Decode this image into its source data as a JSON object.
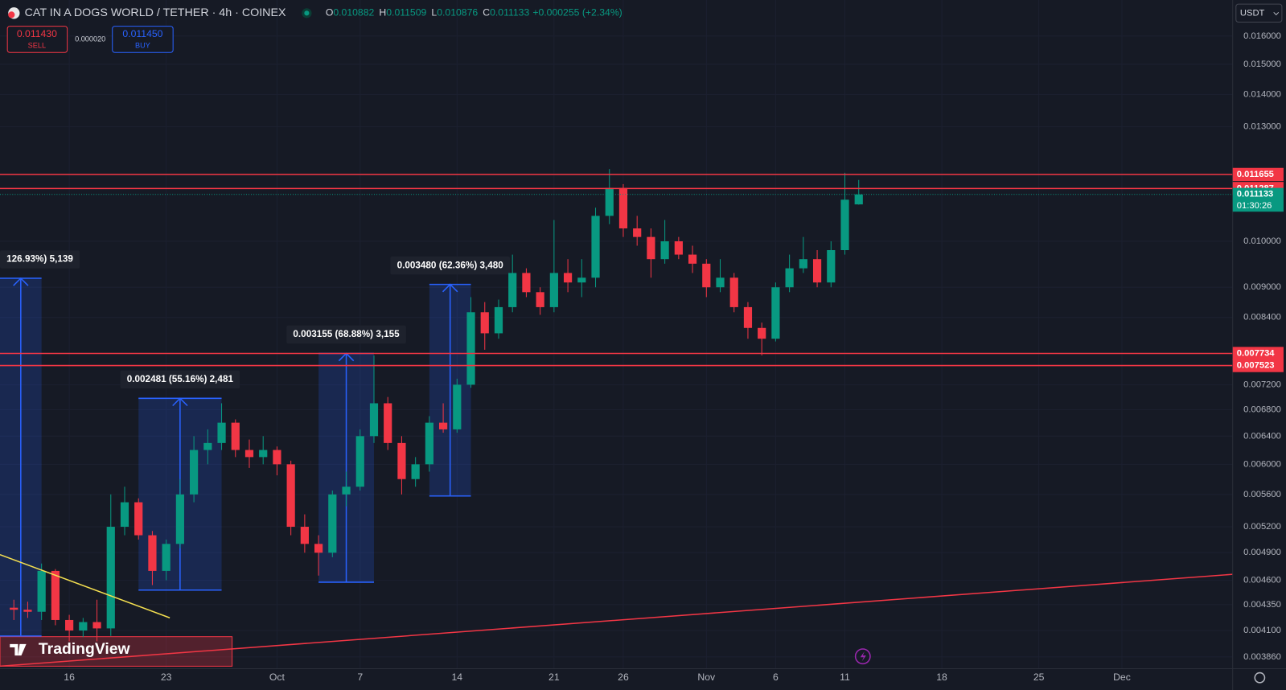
{
  "header": {
    "symbol": "CAT IN A DOGS WORLD / TETHER · 4h · COINEX",
    "ohlc": [
      {
        "label": "O",
        "value": "0.010882"
      },
      {
        "label": "H",
        "value": "0.011509"
      },
      {
        "label": "L",
        "value": "0.010876"
      },
      {
        "label": "C",
        "value": "0.011133"
      }
    ],
    "change": "+0.000255 (+2.34%)"
  },
  "trade": {
    "sell_price": "0.011430",
    "sell_label": "SELL",
    "spread": "0.000020",
    "buy_price": "0.011450",
    "buy_label": "BUY"
  },
  "currency": "USDT",
  "branding": "TradingView",
  "chart_data": {
    "type": "candlestick",
    "log_scale": true,
    "grid": true,
    "up_color": "#089981",
    "down_color": "#f23645",
    "x": [
      "09-12",
      "09-13",
      "09-14",
      "09-15",
      "09-16",
      "09-17",
      "09-18",
      "09-19",
      "09-20",
      "09-21",
      "09-22",
      "09-23",
      "09-24",
      "09-25",
      "09-26",
      "09-27",
      "09-28",
      "09-29",
      "09-30",
      "10-01",
      "10-02",
      "10-03",
      "10-04",
      "10-05",
      "10-06",
      "10-07",
      "10-08",
      "10-09",
      "10-10",
      "10-11",
      "10-12",
      "10-13",
      "10-14",
      "10-15",
      "10-16",
      "10-17",
      "10-18",
      "10-19",
      "10-20",
      "10-21",
      "10-22",
      "10-23",
      "10-24",
      "10-25",
      "10-26",
      "10-27",
      "10-28",
      "10-29",
      "10-30",
      "10-31",
      "11-01",
      "11-02",
      "11-03",
      "11-04",
      "11-05",
      "11-06",
      "11-07",
      "11-08",
      "11-09",
      "11-10",
      "11-11",
      "11-12"
    ],
    "open": [
      0.00432,
      0.0043,
      0.00428,
      0.0047,
      0.0042,
      0.0041,
      0.00418,
      0.00412,
      0.0052,
      0.0055,
      0.0051,
      0.0047,
      0.005,
      0.0056,
      0.0062,
      0.0063,
      0.0066,
      0.0062,
      0.0061,
      0.0062,
      0.006,
      0.0052,
      0.005,
      0.0049,
      0.0056,
      0.0057,
      0.0064,
      0.0069,
      0.0063,
      0.0058,
      0.006,
      0.0066,
      0.0065,
      0.0072,
      0.0085,
      0.0081,
      0.0086,
      0.0093,
      0.0089,
      0.0086,
      0.0093,
      0.0091,
      0.0092,
      0.0106,
      0.0113,
      0.0103,
      0.0101,
      0.0096,
      0.01,
      0.0097,
      0.0095,
      0.009,
      0.0092,
      0.0086,
      0.0082,
      0.008,
      0.009,
      0.0094,
      0.0096,
      0.0091,
      0.0098,
      0.010882
    ],
    "high": [
      0.0044,
      0.00438,
      0.00478,
      0.00472,
      0.00425,
      0.00422,
      0.0044,
      0.0056,
      0.0057,
      0.00555,
      0.00515,
      0.00505,
      0.0058,
      0.0064,
      0.0065,
      0.0069,
      0.00665,
      0.00635,
      0.0064,
      0.00625,
      0.00605,
      0.00535,
      0.0051,
      0.00565,
      0.0059,
      0.0065,
      0.0077,
      0.007,
      0.0064,
      0.0061,
      0.0067,
      0.0069,
      0.0073,
      0.0088,
      0.0087,
      0.00875,
      0.0097,
      0.0094,
      0.009,
      0.0105,
      0.0096,
      0.0096,
      0.0108,
      0.0118,
      0.0114,
      0.0106,
      0.0103,
      0.0105,
      0.0101,
      0.0099,
      0.0096,
      0.0096,
      0.0093,
      0.0087,
      0.0083,
      0.0091,
      0.0097,
      0.0101,
      0.0098,
      0.01,
      0.0117,
      0.011509
    ],
    "low": [
      0.0042,
      0.00422,
      0.0042,
      0.00415,
      0.004,
      0.00404,
      0.004,
      0.00405,
      0.0051,
      0.00505,
      0.00455,
      0.0046,
      0.00495,
      0.0055,
      0.006,
      0.0062,
      0.0061,
      0.00595,
      0.006,
      0.00585,
      0.0051,
      0.0049,
      0.00465,
      0.00485,
      0.00545,
      0.00565,
      0.0063,
      0.0062,
      0.0056,
      0.0057,
      0.0059,
      0.00645,
      0.00645,
      0.00715,
      0.0078,
      0.008,
      0.0085,
      0.0088,
      0.00845,
      0.0085,
      0.0089,
      0.0088,
      0.009,
      0.0104,
      0.0101,
      0.0099,
      0.0092,
      0.0095,
      0.0096,
      0.0093,
      0.0088,
      0.0089,
      0.0085,
      0.008,
      0.0077,
      0.00795,
      0.0089,
      0.0093,
      0.009,
      0.009,
      0.0097,
      0.010876
    ],
    "close": [
      0.0043,
      0.00428,
      0.0047,
      0.0042,
      0.0041,
      0.00418,
      0.00412,
      0.0052,
      0.0055,
      0.0051,
      0.0047,
      0.005,
      0.0056,
      0.0062,
      0.0063,
      0.0066,
      0.0062,
      0.0061,
      0.0062,
      0.006,
      0.0052,
      0.005,
      0.0049,
      0.0056,
      0.0057,
      0.0064,
      0.0069,
      0.0063,
      0.0058,
      0.006,
      0.0066,
      0.0065,
      0.0072,
      0.0085,
      0.0081,
      0.0086,
      0.0093,
      0.0089,
      0.0086,
      0.0093,
      0.0091,
      0.0092,
      0.0106,
      0.0113,
      0.0103,
      0.0101,
      0.0096,
      0.01,
      0.0097,
      0.0095,
      0.009,
      0.0092,
      0.0086,
      0.0082,
      0.008,
      0.009,
      0.0094,
      0.0096,
      0.0091,
      0.0098,
      0.011,
      0.011133
    ],
    "xlim": [
      "09-11",
      "12-09"
    ],
    "xticks": [
      {
        "value": "09-16",
        "label": "16"
      },
      {
        "value": "09-23",
        "label": "23"
      },
      {
        "value": "10-01",
        "label": "Oct"
      },
      {
        "value": "10-07",
        "label": "7"
      },
      {
        "value": "10-14",
        "label": "14"
      },
      {
        "value": "10-21",
        "label": "21"
      },
      {
        "value": "10-26",
        "label": "26"
      },
      {
        "value": "11-01",
        "label": "Nov"
      },
      {
        "value": "11-06",
        "label": "6"
      },
      {
        "value": "11-11",
        "label": "11"
      },
      {
        "value": "11-18",
        "label": "18"
      },
      {
        "value": "11-25",
        "label": "25"
      },
      {
        "value": "12-01",
        "label": "Dec"
      }
    ],
    "ylim": [
      0.003757,
      0.01738
    ],
    "yticks": [
      {
        "value": 0.016,
        "label": "0.016000"
      },
      {
        "value": 0.015,
        "label": "0.015000"
      },
      {
        "value": 0.014,
        "label": "0.014000"
      },
      {
        "value": 0.013,
        "label": "0.013000"
      },
      {
        "value": 0.01,
        "label": "0.010000"
      },
      {
        "value": 0.009,
        "label": "0.009000"
      },
      {
        "value": 0.0084,
        "label": "0.008400"
      },
      {
        "value": 0.0072,
        "label": "0.007200"
      },
      {
        "value": 0.0068,
        "label": "0.006800"
      },
      {
        "value": 0.0064,
        "label": "0.006400"
      },
      {
        "value": 0.006,
        "label": "0.006000"
      },
      {
        "value": 0.0056,
        "label": "0.005600"
      },
      {
        "value": 0.0052,
        "label": "0.005200"
      },
      {
        "value": 0.0049,
        "label": "0.004900"
      },
      {
        "value": 0.0046,
        "label": "0.004600"
      },
      {
        "value": 0.00435,
        "label": "0.004350"
      },
      {
        "value": 0.0041,
        "label": "0.004100"
      },
      {
        "value": 0.00386,
        "label": "0.003860"
      }
    ],
    "levels": [
      {
        "value": 0.011655,
        "color": "#f23645"
      },
      {
        "value": 0.011287,
        "color": "#f23645"
      },
      {
        "value": 0.007734,
        "color": "#f23645"
      },
      {
        "value": 0.007523,
        "color": "#f23645"
      }
    ],
    "last_price": {
      "value": 0.011133,
      "countdown": "01:30:26",
      "color": "#089981"
    },
    "measures": [
      {
        "start": "09-11",
        "end": "09-14",
        "from": 0.004049,
        "to": 0.009188,
        "label": "126.93%) 5,139"
      },
      {
        "start": "09-21",
        "end": "09-27",
        "from": 0.004498,
        "to": 0.006979,
        "label": "0.002481 (55.16%) 2,481"
      },
      {
        "start": "10-04",
        "end": "10-08",
        "from": 0.00458,
        "to": 0.007735,
        "label": "0.003155 (68.88%) 3,155"
      },
      {
        "start": "10-12",
        "end": "10-15",
        "from": 0.00558,
        "to": 0.00906,
        "label": "0.003480 (62.36%) 3,480"
      }
    ]
  }
}
